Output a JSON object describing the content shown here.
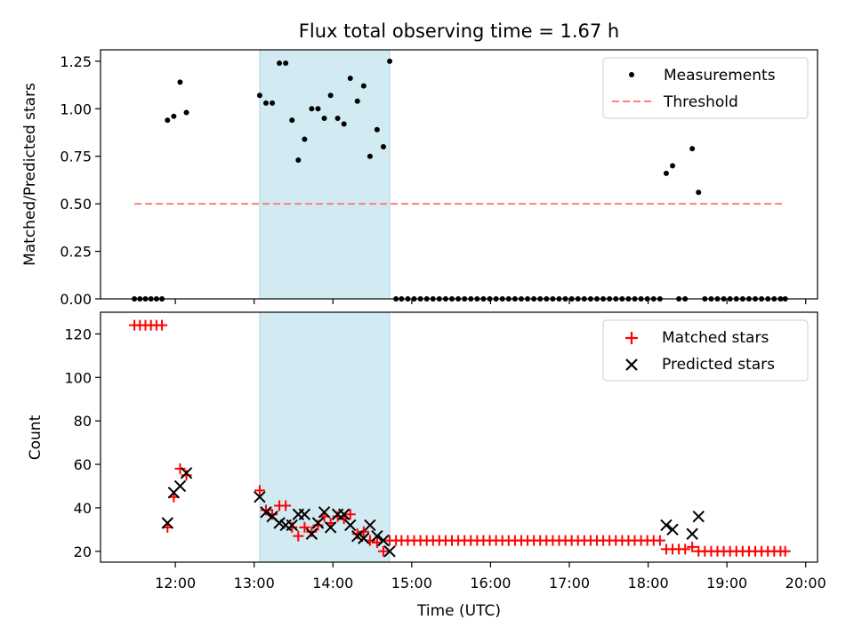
{
  "figure": {
    "title": "Flux total observing time = 1.67 h",
    "xlabel": "Time (UTC)",
    "x_ticks": [
      "12:00",
      "13:00",
      "14:00",
      "15:00",
      "16:00",
      "17:00",
      "18:00",
      "19:00",
      "20:00"
    ]
  },
  "chart_data": [
    {
      "type": "scatter",
      "title": "Flux total observing time = 1.67 h",
      "ylabel": "Matched/Predicted stars",
      "xlabel": "",
      "x_unit": "hours UTC",
      "xlim": [
        11.05,
        20.15
      ],
      "ylim": [
        0,
        1.31
      ],
      "y_ticks": [
        0,
        0.25,
        0.5,
        0.75,
        1.0,
        1.25
      ],
      "y_tick_labels": [
        "0.00",
        "0.25",
        "0.50",
        "0.75",
        "1.00",
        "1.25"
      ],
      "legend_position": "top-right",
      "shaded_interval": [
        13.07,
        14.72
      ],
      "series": [
        {
          "name": "Measurements",
          "marker": "dot",
          "color": "#000000",
          "x": [
            11.48,
            11.55,
            11.62,
            11.69,
            11.76,
            11.83,
            11.9,
            11.98,
            12.06,
            12.14,
            13.07,
            13.15,
            13.23,
            13.32,
            13.4,
            13.48,
            13.56,
            13.64,
            13.73,
            13.81,
            13.89,
            13.97,
            14.06,
            14.14,
            14.22,
            14.31,
            14.39,
            14.47,
            14.56,
            14.64,
            14.72,
            14.8,
            14.87,
            14.95,
            15.03,
            15.11,
            15.19,
            15.27,
            15.35,
            15.43,
            15.51,
            15.59,
            15.67,
            15.75,
            15.83,
            15.91,
            15.99,
            16.07,
            16.15,
            16.23,
            16.31,
            16.39,
            16.47,
            16.55,
            16.63,
            16.71,
            16.79,
            16.87,
            16.95,
            17.03,
            17.11,
            17.19,
            17.27,
            17.35,
            17.43,
            17.51,
            17.59,
            17.67,
            17.75,
            17.83,
            17.91,
            17.99,
            18.07,
            18.15,
            18.23,
            18.31,
            18.39,
            18.47,
            18.56,
            18.64,
            18.72,
            18.8,
            18.88,
            18.96,
            19.04,
            19.12,
            19.2,
            19.28,
            19.36,
            19.44,
            19.52,
            19.6,
            19.68,
            19.74
          ],
          "y": [
            0,
            0,
            0,
            0,
            0,
            0,
            0.94,
            0.96,
            1.14,
            0.98,
            1.07,
            1.03,
            1.03,
            1.24,
            1.24,
            0.94,
            0.73,
            0.84,
            1.0,
            1.0,
            0.95,
            1.07,
            0.95,
            0.92,
            1.16,
            1.04,
            1.12,
            0.75,
            0.89,
            0.8,
            1.25,
            0,
            0,
            0,
            0,
            0,
            0,
            0,
            0,
            0,
            0,
            0,
            0,
            0,
            0,
            0,
            0,
            0,
            0,
            0,
            0,
            0,
            0,
            0,
            0,
            0,
            0,
            0,
            0,
            0,
            0,
            0,
            0,
            0,
            0,
            0,
            0,
            0,
            0,
            0,
            0,
            0,
            0,
            0,
            0.66,
            0.7,
            0,
            0,
            0.79,
            0.56,
            0,
            0,
            0,
            0,
            0,
            0,
            0,
            0,
            0,
            0,
            0,
            0,
            0,
            0
          ]
        },
        {
          "name": "Threshold",
          "marker": "dashed-line",
          "color": "#ff7f7f",
          "x": [
            11.48,
            19.74
          ],
          "y": [
            0.5,
            0.5
          ]
        }
      ]
    },
    {
      "type": "scatter",
      "ylabel": "Count",
      "xlabel": "Time (UTC)",
      "x_unit": "hours UTC",
      "xlim": [
        11.05,
        20.15
      ],
      "ylim": [
        15,
        130
      ],
      "y_ticks": [
        20,
        40,
        60,
        80,
        100,
        120
      ],
      "y_tick_labels": [
        "20",
        "40",
        "60",
        "80",
        "100",
        "120"
      ],
      "legend_position": "top-right",
      "shaded_interval": [
        13.07,
        14.72
      ],
      "series": [
        {
          "name": "Matched stars",
          "marker": "plus",
          "color": "#ff0000",
          "x": [
            11.48,
            11.55,
            11.62,
            11.69,
            11.76,
            11.83,
            11.9,
            11.98,
            12.06,
            12.14,
            13.07,
            13.15,
            13.23,
            13.32,
            13.4,
            13.48,
            13.56,
            13.64,
            13.73,
            13.81,
            13.89,
            13.97,
            14.06,
            14.14,
            14.22,
            14.31,
            14.39,
            14.47,
            14.56,
            14.64,
            14.72,
            14.8,
            14.87,
            14.95,
            15.03,
            15.11,
            15.19,
            15.27,
            15.35,
            15.43,
            15.51,
            15.59,
            15.67,
            15.75,
            15.83,
            15.91,
            15.99,
            16.07,
            16.15,
            16.23,
            16.31,
            16.39,
            16.47,
            16.55,
            16.63,
            16.71,
            16.79,
            16.87,
            16.95,
            17.03,
            17.11,
            17.19,
            17.27,
            17.35,
            17.43,
            17.51,
            17.59,
            17.67,
            17.75,
            17.83,
            17.91,
            17.99,
            18.07,
            18.15,
            18.23,
            18.31,
            18.39,
            18.47,
            18.56,
            18.64,
            18.72,
            18.8,
            18.88,
            18.96,
            19.04,
            19.12,
            19.2,
            19.28,
            19.36,
            19.44,
            19.52,
            19.6,
            19.68,
            19.74
          ],
          "y": [
            124,
            124,
            124,
            124,
            124,
            124,
            31,
            45,
            58,
            55,
            48,
            39,
            37,
            41,
            41,
            31,
            27,
            31,
            29,
            32,
            36,
            33,
            36,
            35,
            37,
            28,
            29,
            25,
            24,
            20,
            25,
            25,
            25,
            25,
            25,
            25,
            25,
            25,
            25,
            25,
            25,
            25,
            25,
            25,
            25,
            25,
            25,
            25,
            25,
            25,
            25,
            25,
            25,
            25,
            25,
            25,
            25,
            25,
            25,
            25,
            25,
            25,
            25,
            25,
            25,
            25,
            25,
            25,
            25,
            25,
            25,
            25,
            25,
            25,
            21,
            21,
            21,
            21,
            22,
            20,
            20,
            20,
            20,
            20,
            20,
            20,
            20,
            20,
            20,
            20,
            20,
            20,
            20,
            20
          ]
        },
        {
          "name": "Predicted stars",
          "marker": "x",
          "color": "#000000",
          "x": [
            11.9,
            11.98,
            12.06,
            12.14,
            13.07,
            13.15,
            13.23,
            13.32,
            13.4,
            13.48,
            13.56,
            13.64,
            13.73,
            13.81,
            13.89,
            13.97,
            14.06,
            14.14,
            14.22,
            14.31,
            14.39,
            14.47,
            14.56,
            14.64,
            14.72,
            18.23,
            18.31,
            18.56,
            18.64
          ],
          "y": [
            33,
            47,
            50,
            56,
            45,
            38,
            36,
            33,
            32,
            32,
            37,
            37,
            28,
            33,
            38,
            31,
            37,
            37,
            32,
            27,
            26,
            32,
            27,
            25,
            20,
            32,
            30,
            28,
            36
          ]
        }
      ]
    }
  ]
}
